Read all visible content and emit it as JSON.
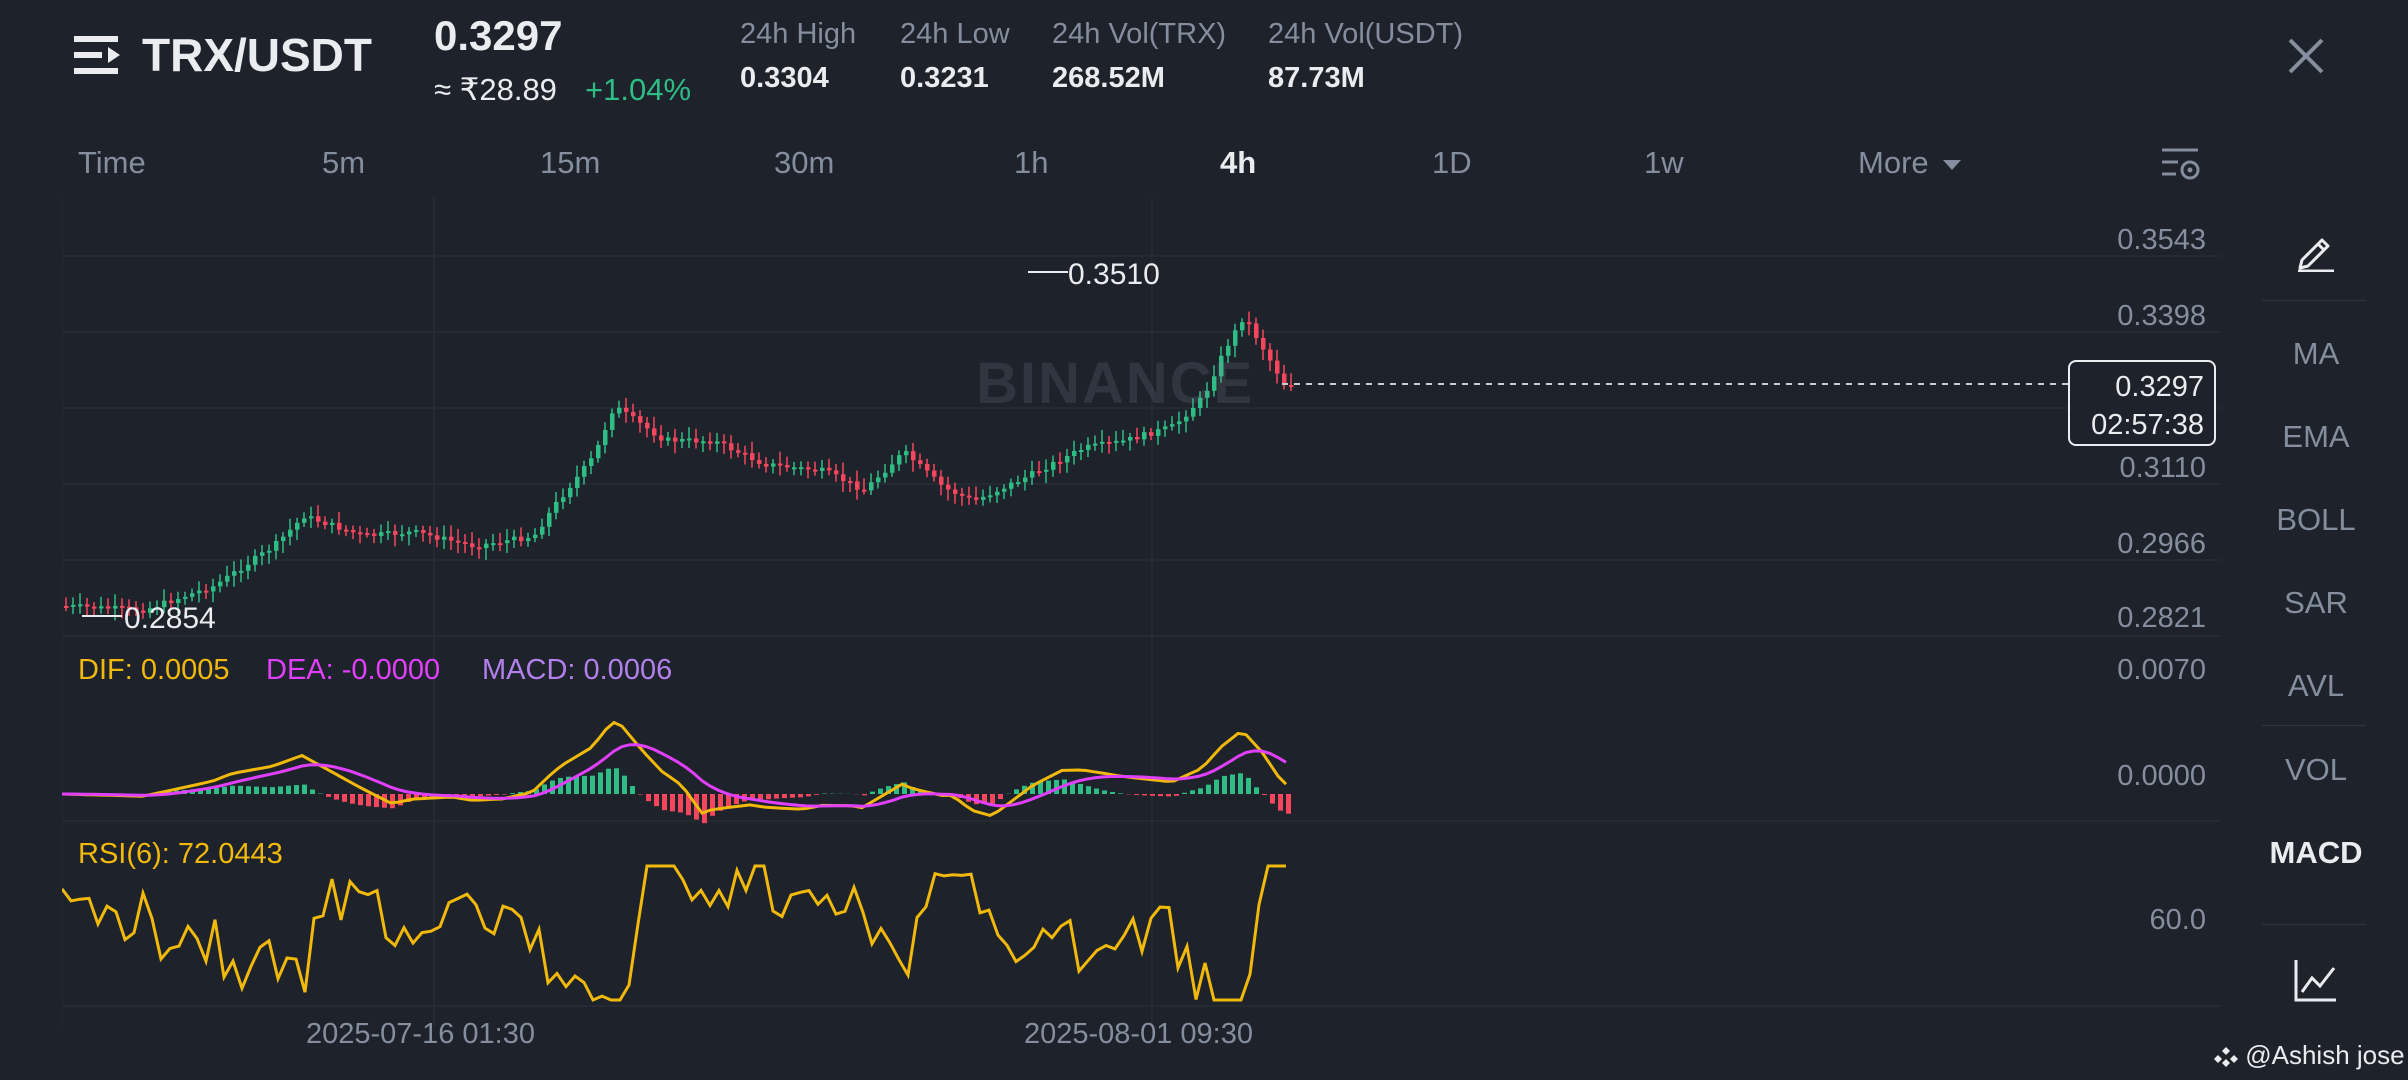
{
  "header": {
    "pair": "TRX/USDT",
    "price": "0.3297",
    "approx": "≈ ₹28.89",
    "change": "+1.04%",
    "stats": [
      {
        "label": "24h High",
        "value": "0.3304"
      },
      {
        "label": "24h Low",
        "value": "0.3231"
      },
      {
        "label": "24h Vol(TRX)",
        "value": "268.52M"
      },
      {
        "label": "24h Vol(USDT)",
        "value": "87.73M"
      }
    ]
  },
  "timeframes": [
    "Time",
    "5m",
    "15m",
    "30m",
    "1h",
    "4h",
    "1D",
    "1w",
    "More"
  ],
  "active_timeframe": "4h",
  "sidebar": [
    "MA",
    "EMA",
    "BOLL",
    "SAR",
    "AVL",
    "VOL",
    "MACD"
  ],
  "active_indicator": "MACD",
  "chart": {
    "price_axis": [
      "0.3543",
      "0.3398",
      "0.3110",
      "0.2966",
      "0.2821"
    ],
    "high_label": "0.3510",
    "low_label": "0.2854",
    "current_price": "0.3297",
    "countdown": "02:57:38",
    "watermark": "BINANCE",
    "macd": {
      "dif": "DIF: 0.0005",
      "dea": "DEA: -0.0000",
      "macd": "MACD: 0.0006"
    },
    "macd_axis": [
      "0.0070",
      "0.0000"
    ],
    "rsi_label": "RSI(6): 72.0443",
    "rsi_axis": "60.0",
    "dates": [
      "2025-07-16 01:30",
      "2025-08-01 09:30"
    ]
  },
  "credit": "@Ashish jose",
  "colors": {
    "up": "#2ebd85",
    "down": "#f6465d",
    "dif": "#f0b90b",
    "dea": "#e040fb",
    "macd": "#b37feb",
    "rsi": "#f0b90b"
  }
}
